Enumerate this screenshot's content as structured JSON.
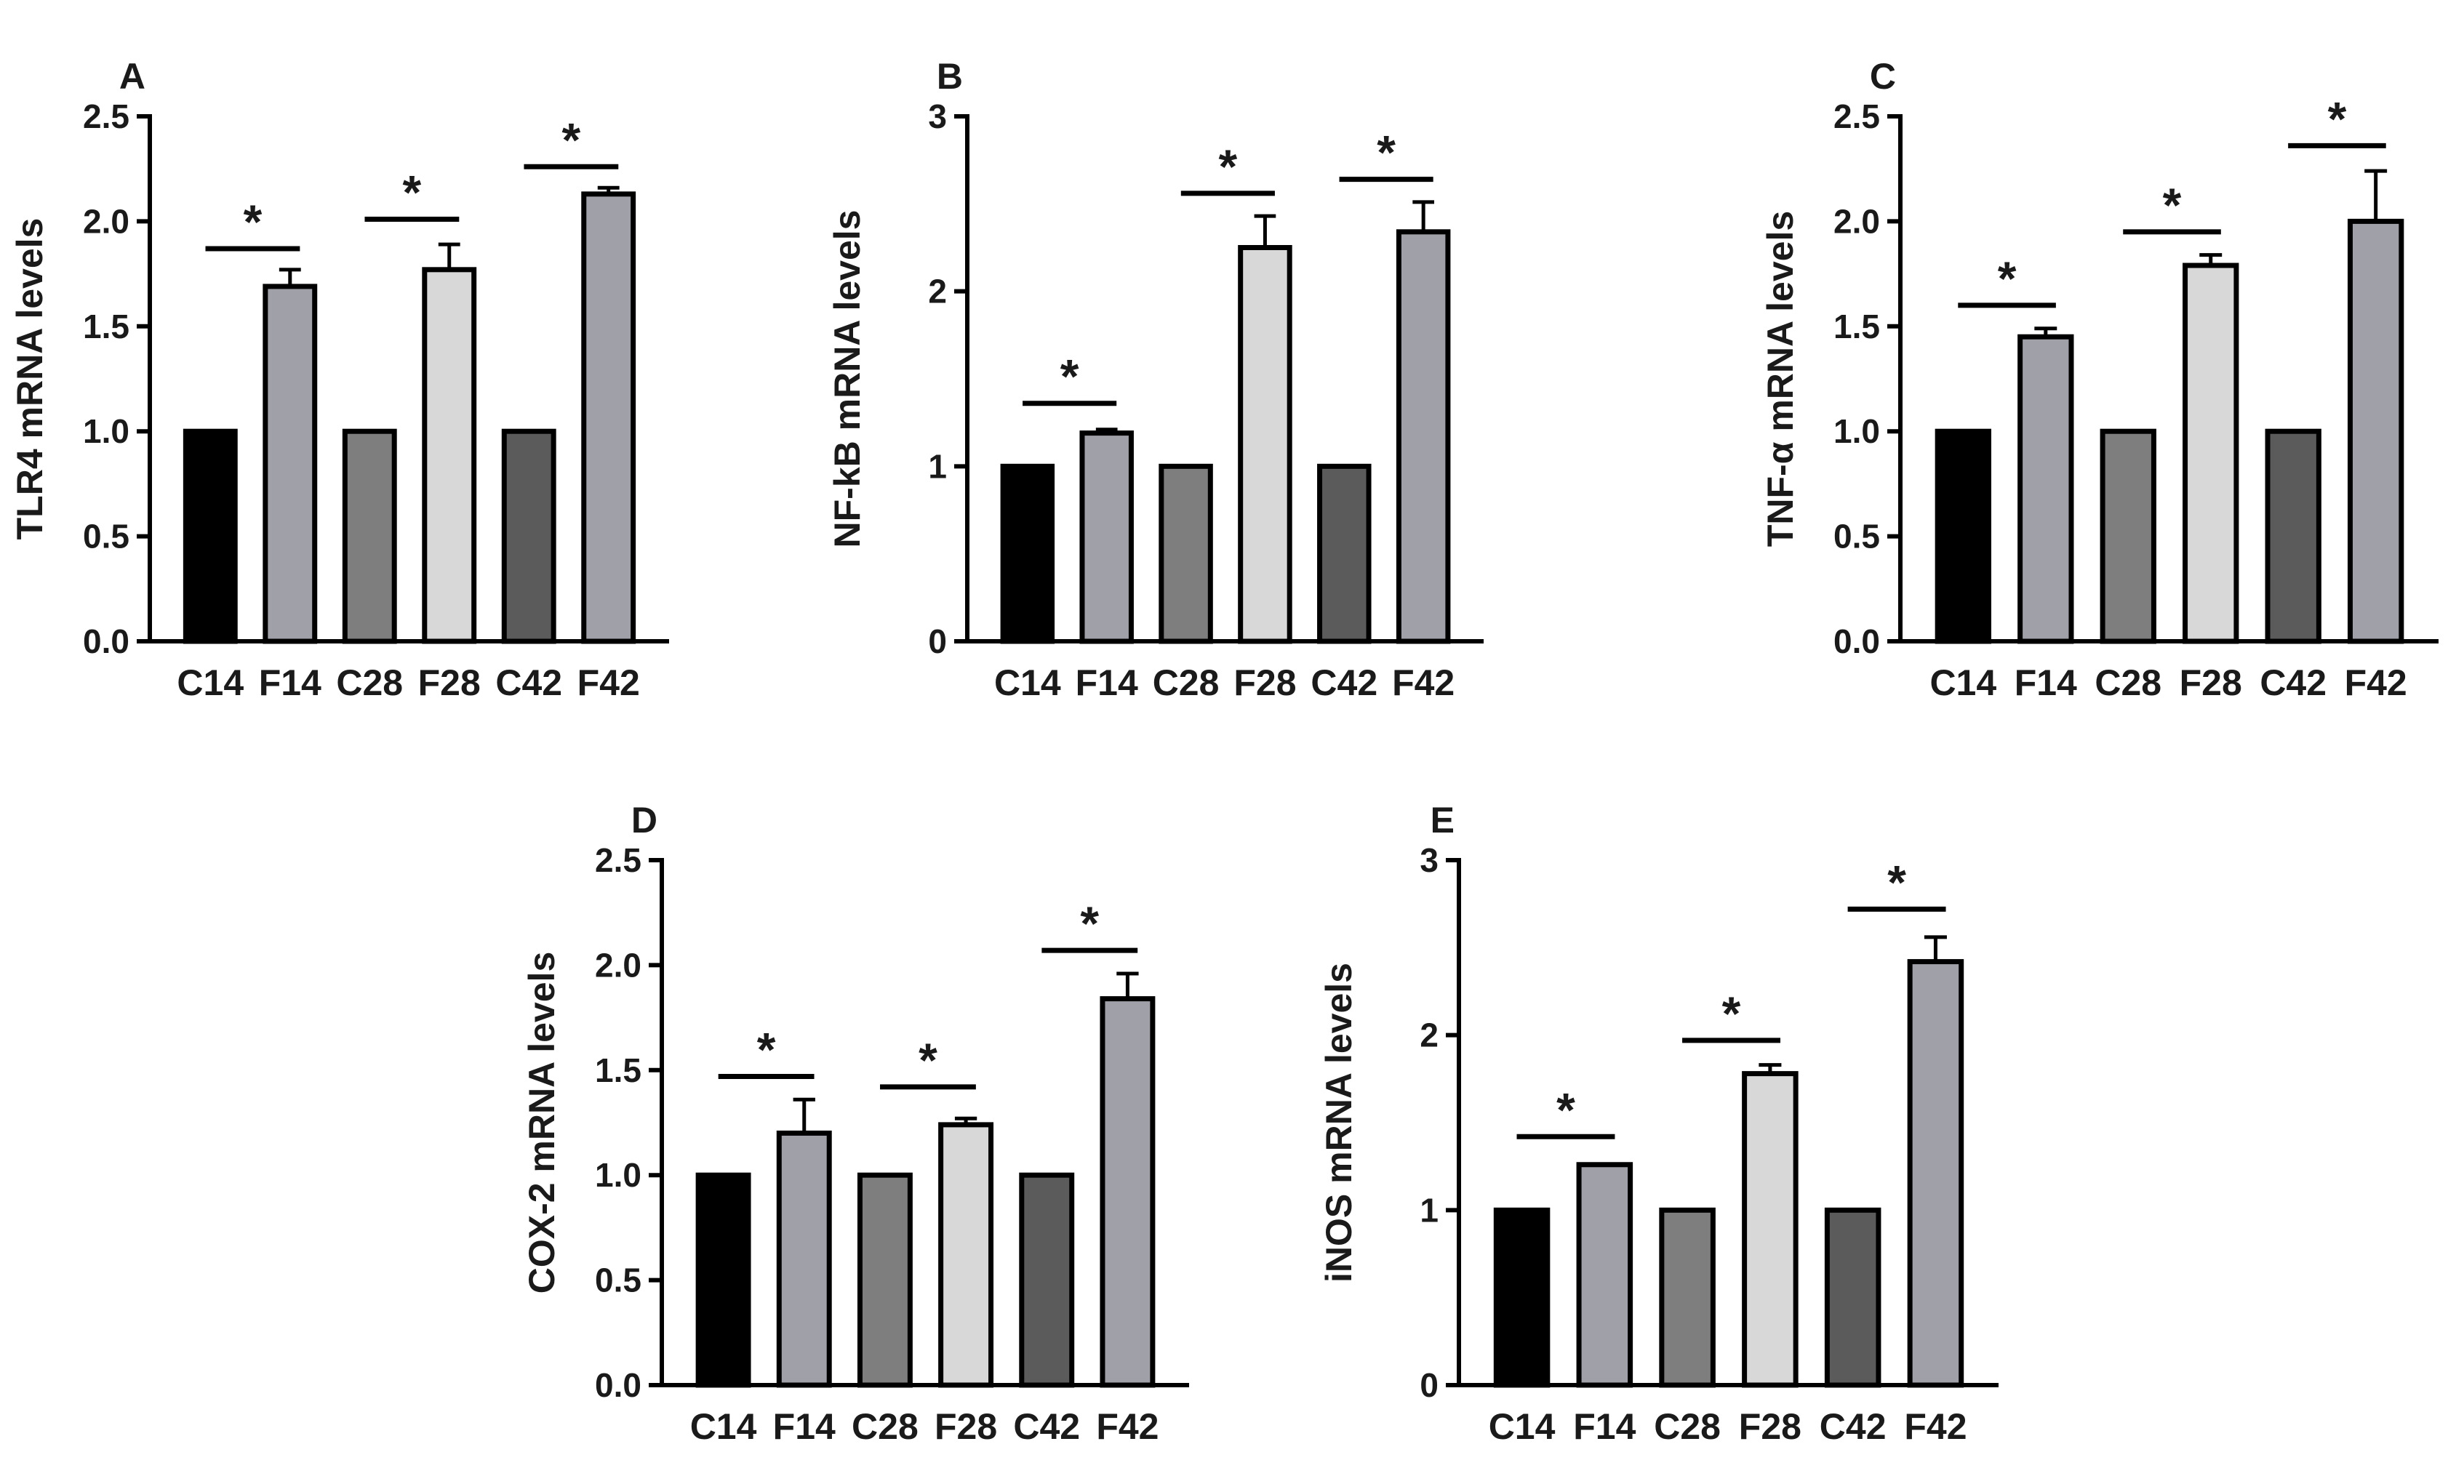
{
  "figure": {
    "categories": [
      "C14",
      "F14",
      "C28",
      "F28",
      "C42",
      "F42"
    ],
    "bar_colors": [
      "#000000",
      "#a0a0a8",
      "#7e7e7e",
      "#d8d8d8",
      "#5b5b5b",
      "#a0a0a8"
    ],
    "edge_color": "#000000",
    "significance_marker": "*"
  },
  "chart_data": [
    {
      "panel": "A",
      "type": "bar",
      "ylabel": "TLR4 mRNA levels",
      "ylim": [
        0,
        2.5
      ],
      "yticks": [
        "0.0",
        "0.5",
        "1.0",
        "1.5",
        "2.0",
        "2.5"
      ],
      "categories": [
        "C14",
        "F14",
        "C28",
        "F28",
        "C42",
        "F42"
      ],
      "values": [
        1.0,
        1.69,
        1.0,
        1.77,
        1.0,
        2.13
      ],
      "errors": [
        0,
        0.08,
        0,
        0.12,
        0,
        0.03
      ],
      "significance": [
        {
          "pair": [
            0,
            1
          ],
          "label": "*",
          "level": 1.87
        },
        {
          "pair": [
            2,
            3
          ],
          "label": "*",
          "level": 2.01
        },
        {
          "pair": [
            4,
            5
          ],
          "label": "*",
          "level": 2.26
        }
      ]
    },
    {
      "panel": "B",
      "type": "bar",
      "ylabel": "NF-kB mRNA levels",
      "ylim": [
        0,
        3
      ],
      "yticks": [
        "0",
        "1",
        "2",
        "3"
      ],
      "categories": [
        "C14",
        "F14",
        "C28",
        "F28",
        "C42",
        "F42"
      ],
      "values": [
        1.0,
        1.19,
        1.0,
        2.25,
        1.0,
        2.34
      ],
      "errors": [
        0,
        0.02,
        0,
        0.18,
        0,
        0.17
      ],
      "significance": [
        {
          "pair": [
            0,
            1
          ],
          "label": "*",
          "level": 1.36
        },
        {
          "pair": [
            2,
            3
          ],
          "label": "*",
          "level": 2.56
        },
        {
          "pair": [
            4,
            5
          ],
          "label": "*",
          "level": 2.64
        }
      ]
    },
    {
      "panel": "C",
      "type": "bar",
      "ylabel": "TNF-α mRNA levels",
      "ylim": [
        0,
        2.5
      ],
      "yticks": [
        "0.0",
        "0.5",
        "1.0",
        "1.5",
        "2.0",
        "2.5"
      ],
      "categories": [
        "C14",
        "F14",
        "C28",
        "F28",
        "C42",
        "F42"
      ],
      "values": [
        1.0,
        1.45,
        1.0,
        1.79,
        1.0,
        2.0
      ],
      "errors": [
        0,
        0.04,
        0,
        0.05,
        0,
        0.24
      ],
      "significance": [
        {
          "pair": [
            0,
            1
          ],
          "label": "*",
          "level": 1.6
        },
        {
          "pair": [
            2,
            3
          ],
          "label": "*",
          "level": 1.95
        },
        {
          "pair": [
            4,
            5
          ],
          "label": "*",
          "level": 2.36
        }
      ]
    },
    {
      "panel": "D",
      "type": "bar",
      "ylabel": "COX-2 mRNA levels",
      "ylim": [
        0,
        2.5
      ],
      "yticks": [
        "0.0",
        "0.5",
        "1.0",
        "1.5",
        "2.0",
        "2.5"
      ],
      "categories": [
        "C14",
        "F14",
        "C28",
        "F28",
        "C42",
        "F42"
      ],
      "values": [
        1.0,
        1.2,
        1.0,
        1.24,
        1.0,
        1.84
      ],
      "errors": [
        0,
        0.16,
        0,
        0.03,
        0,
        0.12
      ],
      "significance": [
        {
          "pair": [
            0,
            1
          ],
          "label": "*",
          "level": 1.47
        },
        {
          "pair": [
            2,
            3
          ],
          "label": "*",
          "level": 1.42
        },
        {
          "pair": [
            4,
            5
          ],
          "label": "*",
          "level": 2.07
        }
      ]
    },
    {
      "panel": "E",
      "type": "bar",
      "ylabel": "iNOS mRNA levels",
      "ylim": [
        0,
        3
      ],
      "yticks": [
        "0",
        "1",
        "2",
        "3"
      ],
      "categories": [
        "C14",
        "F14",
        "C28",
        "F28",
        "C42",
        "F42"
      ],
      "values": [
        1.0,
        1.26,
        1.0,
        1.78,
        1.0,
        2.42
      ],
      "errors": [
        0,
        0.0,
        0,
        0.05,
        0,
        0.14
      ],
      "significance": [
        {
          "pair": [
            0,
            1
          ],
          "label": "*",
          "level": 1.42
        },
        {
          "pair": [
            2,
            3
          ],
          "label": "*",
          "level": 1.97
        },
        {
          "pair": [
            4,
            5
          ],
          "label": "*",
          "level": 2.72
        }
      ]
    }
  ]
}
